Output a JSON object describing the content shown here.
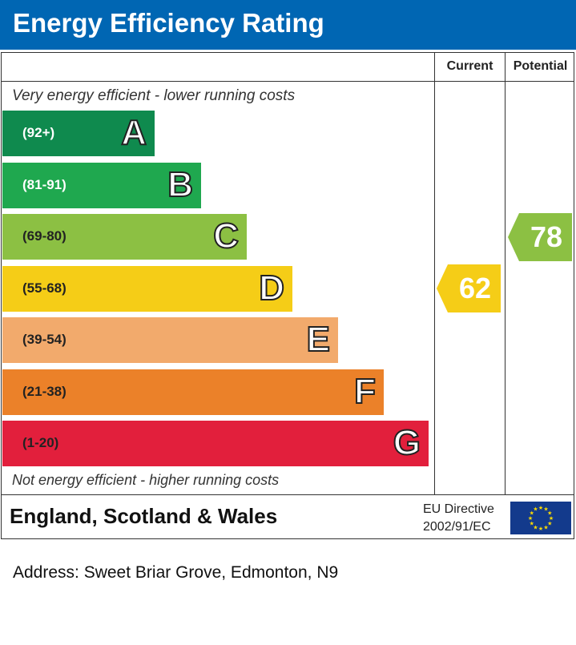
{
  "title": "Energy Efficiency Rating",
  "columns": {
    "current": "Current",
    "potential": "Potential"
  },
  "notes": {
    "top": "Very energy efficient - lower running costs",
    "bottom": "Not energy efficient - higher running costs"
  },
  "bands": [
    {
      "letter": "A",
      "range": "(92+)",
      "color": "#0f8a4e",
      "range_color": "#ffffff"
    },
    {
      "letter": "B",
      "range": "(81-91)",
      "color": "#1fa84f",
      "range_color": "#ffffff"
    },
    {
      "letter": "C",
      "range": "(69-80)",
      "color": "#8cc043",
      "range_color": "#222222"
    },
    {
      "letter": "D",
      "range": "(55-68)",
      "color": "#f5cd17",
      "range_color": "#222222"
    },
    {
      "letter": "E",
      "range": "(39-54)",
      "color": "#f2aa6c",
      "range_color": "#222222"
    },
    {
      "letter": "F",
      "range": "(21-38)",
      "color": "#eb8129",
      "range_color": "#222222"
    },
    {
      "letter": "G",
      "range": "(1-20)",
      "color": "#e21f3c",
      "range_color": "#222222"
    }
  ],
  "current": {
    "value": "62",
    "band": "D",
    "color": "#f5cd17"
  },
  "potential": {
    "value": "78",
    "band": "C",
    "color": "#8cc043"
  },
  "footer": {
    "country": "England, Scotland & Wales",
    "directive_line1": "EU Directive",
    "directive_line2": "2002/91/EC",
    "flag_icon": "eu-flag-icon"
  },
  "address": "Address: Sweet Briar Grove, Edmonton, N9"
}
